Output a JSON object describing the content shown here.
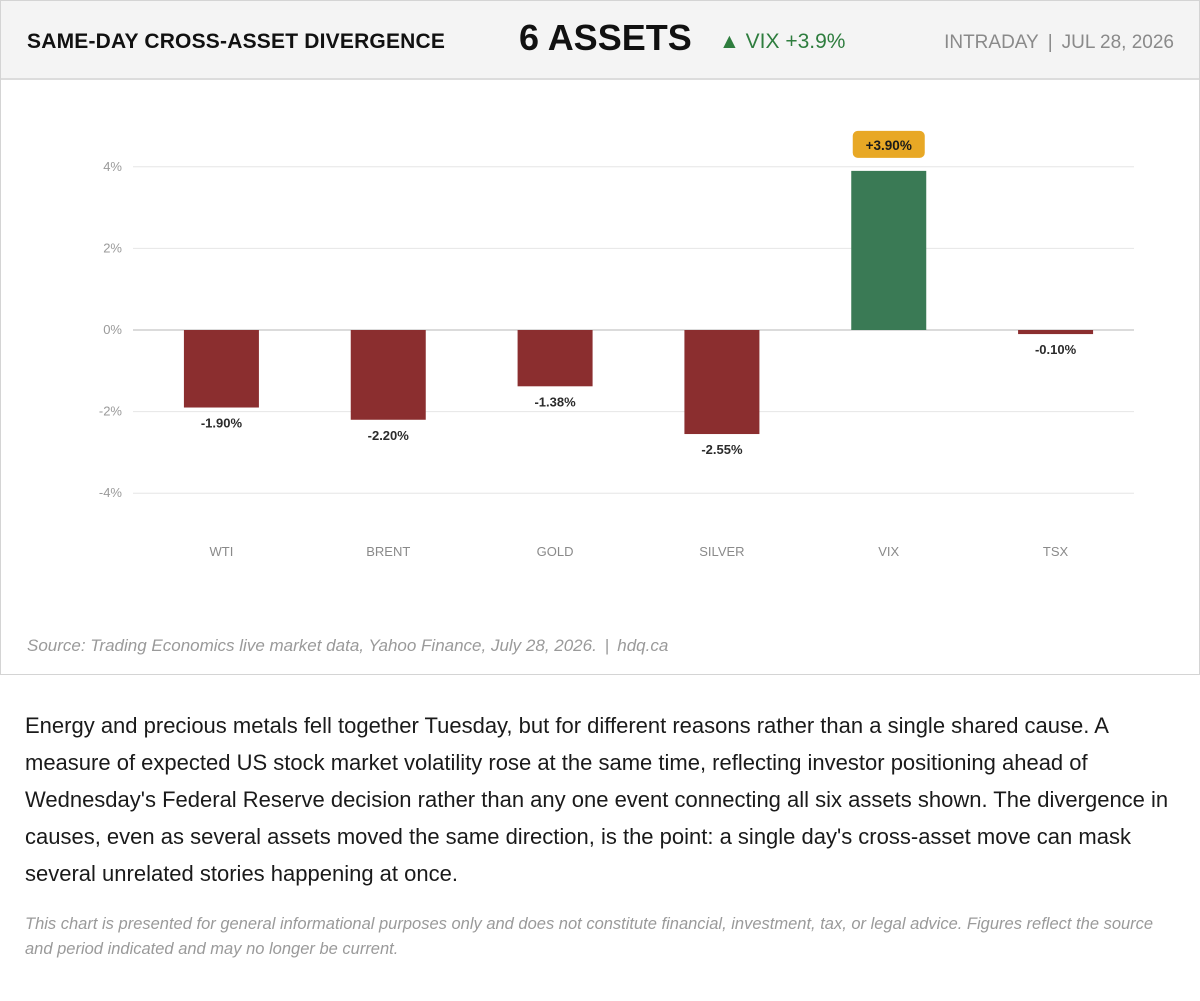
{
  "header": {
    "title": "SAME-DAY CROSS-ASSET DIVERGENCE",
    "count": "6 ASSETS",
    "change_arrow": "▲",
    "change_text": "VIX +3.9%",
    "period": "INTRADAY",
    "separator": "|",
    "date": "JUL 28, 2026"
  },
  "chart_data": {
    "type": "bar",
    "categories": [
      "WTI",
      "BRENT",
      "GOLD",
      "SILVER",
      "VIX",
      "TSX"
    ],
    "values": [
      -1.9,
      -2.2,
      -1.38,
      -2.55,
      3.9,
      -0.1
    ],
    "data_labels": [
      "-1.90%",
      "-2.20%",
      "-1.38%",
      "-2.55%",
      "+3.90%",
      "-0.10%"
    ],
    "yticks": [
      "4%",
      "2%",
      "0%",
      "-2%",
      "-4%"
    ],
    "ytick_values": [
      4,
      2,
      0,
      -2,
      -4
    ],
    "ylim": [
      -5,
      5
    ],
    "grid": true,
    "highlight_category": "VIX",
    "colors": {
      "negative": "#8b2e2f",
      "positive": "#3a7a55",
      "badge": "#e8a825",
      "grid": "#e6e6e6",
      "zero_line": "#cfcfcf"
    }
  },
  "footer": {
    "source": "Source: Trading Economics live market data, Yahoo Finance, July 28, 2026.",
    "separator": "|",
    "site": "hdq.ca"
  },
  "article": {
    "paragraph": "Energy and precious metals fell together Tuesday, but for different reasons rather than a single shared cause. A measure of expected US stock market volatility rose at the same time, reflecting investor positioning ahead of Wednesday's Federal Reserve decision rather than any one event connecting all six assets shown. The divergence in causes, even as several assets moved the same direction, is the point: a single day's cross-asset move can mask several unrelated stories happening at once.",
    "disclaimer": "This chart is presented for general informational purposes only and does not constitute financial, investment, tax, or legal advice. Figures reflect the source and period indicated and may no longer be current."
  }
}
